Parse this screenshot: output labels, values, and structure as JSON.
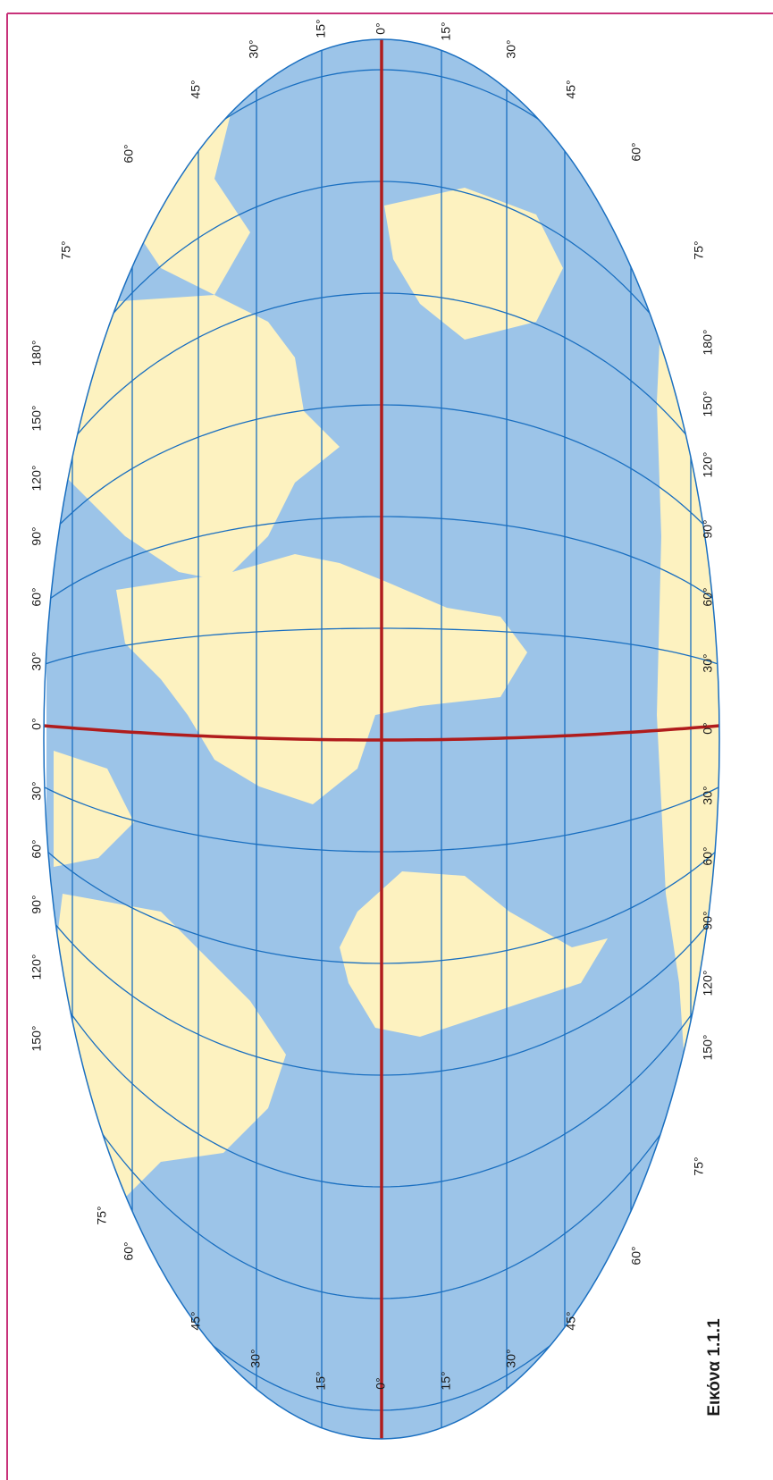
{
  "top_labels": [
    "75°",
    "60°",
    "45°",
    "30°",
    "15°",
    "0°",
    "15°",
    "30°",
    "45°",
    "60°",
    "75°"
  ],
  "bottom_labels": [
    "75°",
    "60°",
    "45°",
    "30°",
    "15°",
    "0°",
    "15°",
    "30°",
    "45°",
    "60°",
    "75°"
  ],
  "left_labels": [
    "180°",
    "150°",
    "120°",
    "90°",
    "60°",
    "30°",
    "0°",
    "30°",
    "60°",
    "90°",
    "120°",
    "150°"
  ],
  "right_labels": [
    "180°",
    "150°",
    "120°",
    "90°",
    "60°",
    "30°",
    "0°",
    "30°",
    "60°",
    "90°",
    "120°",
    "150°"
  ],
  "caption": "Εικόνα 1.1.1"
}
